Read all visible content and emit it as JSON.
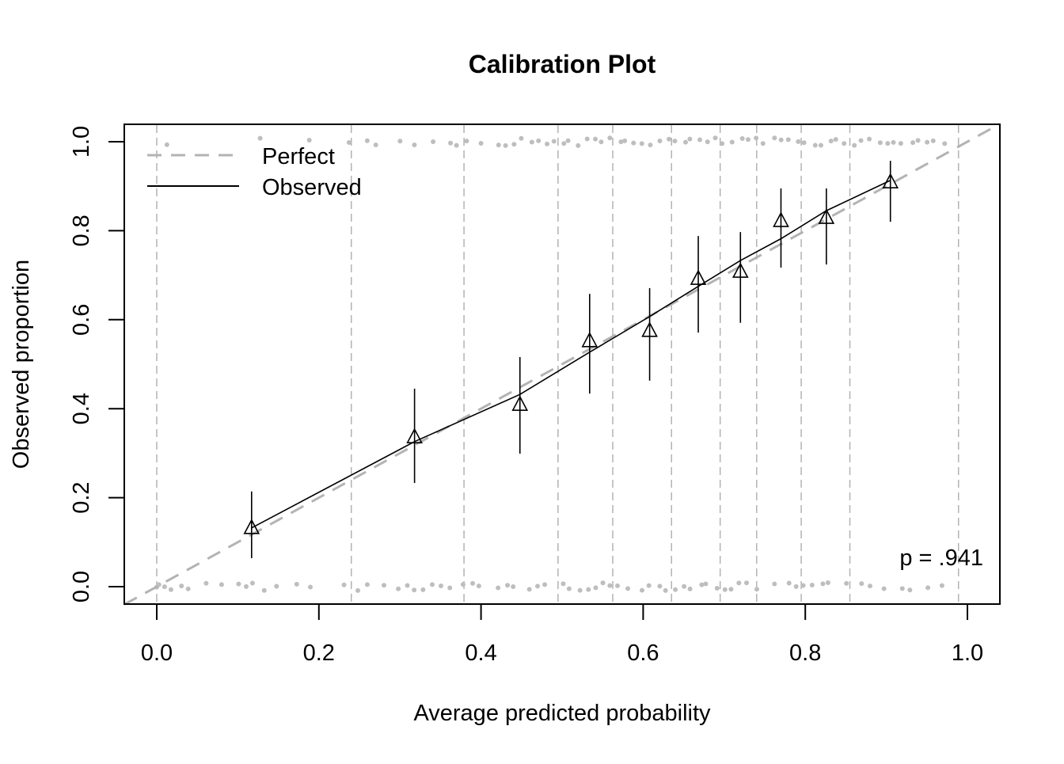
{
  "chart_data": {
    "type": "scatter",
    "title": "Calibration Plot",
    "xlabel": "Average predicted probability",
    "ylabel": "Observed proportion",
    "xlim": [
      -0.04,
      1.04
    ],
    "ylim": [
      -0.04,
      1.04
    ],
    "xticks": [
      "0.0",
      "0.2",
      "0.4",
      "0.6",
      "0.8",
      "1.0"
    ],
    "yticks": [
      "0.0",
      "0.2",
      "0.4",
      "0.6",
      "0.8",
      "1.0"
    ],
    "grid": false,
    "legend": {
      "placement": "top-left",
      "entries": [
        {
          "label": "Perfect",
          "style": "dashed",
          "color": "#b3b3b3"
        },
        {
          "label": "Observed",
          "style": "solid",
          "color": "#000000"
        }
      ]
    },
    "annotation": "p = .941",
    "bin_boundaries": [
      0.0,
      0.24,
      0.379,
      0.495,
      0.5625,
      0.635,
      0.695,
      0.74,
      0.795,
      0.855,
      0.989
    ],
    "points": {
      "marker": "triangle",
      "x": [
        0.117,
        0.318,
        0.448,
        0.534,
        0.608,
        0.668,
        0.72,
        0.77,
        0.826,
        0.905
      ],
      "y": [
        0.132,
        0.336,
        0.409,
        0.552,
        0.575,
        0.692,
        0.708,
        0.822,
        0.829,
        0.909
      ],
      "lower": [
        0.064,
        0.233,
        0.299,
        0.434,
        0.463,
        0.571,
        0.593,
        0.717,
        0.724,
        0.82
      ],
      "upper": [
        0.214,
        0.445,
        0.516,
        0.658,
        0.671,
        0.788,
        0.797,
        0.895,
        0.895,
        0.957
      ]
    },
    "observed_line": {
      "x": [
        0.117,
        0.318,
        0.448,
        0.534,
        0.608,
        0.668,
        0.72,
        0.77,
        0.826,
        0.905
      ],
      "y": [
        0.132,
        0.326,
        0.432,
        0.527,
        0.607,
        0.675,
        0.733,
        0.782,
        0.845,
        0.913
      ]
    },
    "perfect_line": {
      "x": [
        -0.04,
        1.04
      ],
      "y": [
        -0.04,
        1.04
      ]
    },
    "rug": {
      "color": "#bebebe",
      "outcome_0_x": [
        0.0,
        0.005,
        0.01,
        0.02,
        0.03,
        0.04,
        0.06,
        0.08,
        0.1,
        0.11,
        0.12,
        0.13,
        0.15,
        0.17,
        0.19,
        0.23,
        0.25,
        0.26,
        0.28,
        0.3,
        0.31,
        0.32,
        0.33,
        0.34,
        0.35,
        0.36,
        0.38,
        0.39,
        0.4,
        0.42,
        0.43,
        0.44,
        0.46,
        0.47,
        0.48,
        0.5,
        0.51,
        0.52,
        0.53,
        0.54,
        0.55,
        0.56,
        0.57,
        0.58,
        0.6,
        0.61,
        0.62,
        0.63,
        0.64,
        0.65,
        0.66,
        0.67,
        0.68,
        0.69,
        0.7,
        0.71,
        0.72,
        0.73,
        0.74,
        0.76,
        0.78,
        0.79,
        0.8,
        0.81,
        0.82,
        0.83,
        0.85,
        0.87,
        0.88,
        0.9,
        0.92,
        0.93,
        0.95,
        0.97
      ],
      "outcome_1_x": [
        0.015,
        0.13,
        0.19,
        0.24,
        0.26,
        0.27,
        0.3,
        0.32,
        0.34,
        0.36,
        0.37,
        0.38,
        0.4,
        0.42,
        0.43,
        0.44,
        0.45,
        0.46,
        0.47,
        0.48,
        0.49,
        0.5,
        0.51,
        0.52,
        0.53,
        0.54,
        0.55,
        0.56,
        0.57,
        0.58,
        0.59,
        0.6,
        0.61,
        0.62,
        0.63,
        0.64,
        0.65,
        0.66,
        0.67,
        0.68,
        0.69,
        0.7,
        0.71,
        0.72,
        0.73,
        0.74,
        0.75,
        0.76,
        0.77,
        0.78,
        0.79,
        0.8,
        0.81,
        0.82,
        0.83,
        0.84,
        0.85,
        0.86,
        0.87,
        0.88,
        0.89,
        0.9,
        0.91,
        0.92,
        0.93,
        0.94,
        0.95,
        0.96,
        0.97
      ]
    }
  }
}
